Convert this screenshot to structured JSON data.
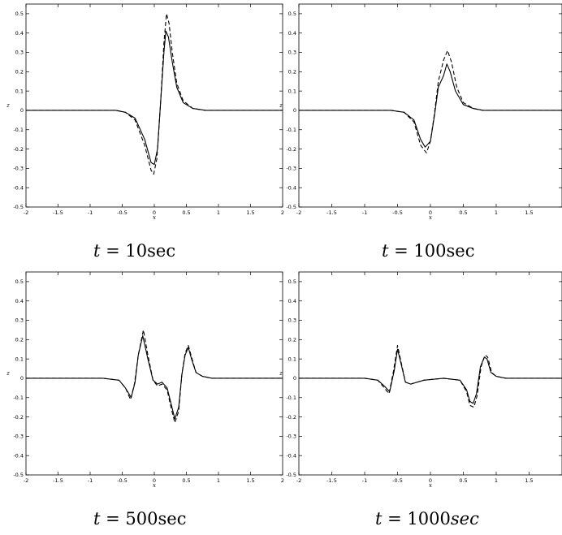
{
  "chart_data": [
    {
      "type": "line",
      "caption": {
        "t": "t",
        "eq": " = ",
        "value": "10",
        "unit": "sec"
      },
      "xlabel": "x",
      "ylabel": "z",
      "xlim": [
        -2,
        2
      ],
      "ylim": [
        -0.5,
        0.55
      ],
      "xticks": [
        -2,
        -1.5,
        -1,
        -0.5,
        0,
        0.5,
        1,
        1.5,
        2
      ],
      "yticks": [
        -0.5,
        -0.4,
        -0.3,
        -0.2,
        -0.1,
        0,
        0.1,
        0.2,
        0.3,
        0.4,
        0.5
      ],
      "series": [
        {
          "style": "solid",
          "x": [
            -2,
            -0.6,
            -0.45,
            -0.3,
            -0.15,
            -0.05,
            0.0,
            0.05,
            0.1,
            0.15,
            0.18,
            0.22,
            0.28,
            0.35,
            0.45,
            0.6,
            0.8,
            2
          ],
          "y": [
            0,
            0,
            -0.01,
            -0.04,
            -0.15,
            -0.27,
            -0.28,
            -0.2,
            0.05,
            0.3,
            0.41,
            0.38,
            0.25,
            0.12,
            0.04,
            0.01,
            0,
            0
          ]
        },
        {
          "style": "dashed",
          "x": [
            -2,
            -0.6,
            -0.45,
            -0.3,
            -0.15,
            -0.05,
            -0.01,
            0.04,
            0.1,
            0.15,
            0.19,
            0.23,
            0.28,
            0.35,
            0.45,
            0.6,
            0.8,
            2
          ],
          "y": [
            0,
            0,
            -0.01,
            -0.05,
            -0.18,
            -0.31,
            -0.33,
            -0.25,
            0.05,
            0.35,
            0.5,
            0.45,
            0.3,
            0.14,
            0.05,
            0.01,
            0,
            0
          ]
        }
      ]
    },
    {
      "type": "line",
      "caption": {
        "t": "t",
        "eq": " = ",
        "value": "100",
        "unit": "sec"
      },
      "xlabel": "x",
      "ylabel": "z",
      "xlim": [
        -2,
        2
      ],
      "ylim": [
        -0.5,
        0.55
      ],
      "xticks": [
        -2,
        -1.5,
        -1,
        -0.5,
        0,
        0.5,
        1,
        1.5
      ],
      "yticks": [
        -0.5,
        -0.4,
        -0.3,
        -0.2,
        -0.1,
        0,
        0.1,
        0.2,
        0.3,
        0.4,
        0.5
      ],
      "series": [
        {
          "style": "solid",
          "x": [
            -2,
            -0.6,
            -0.4,
            -0.25,
            -0.15,
            -0.08,
            0.0,
            0.06,
            0.12,
            0.2,
            0.25,
            0.3,
            0.38,
            0.5,
            0.65,
            0.8,
            2
          ],
          "y": [
            0,
            0,
            -0.01,
            -0.05,
            -0.15,
            -0.19,
            -0.16,
            -0.03,
            0.12,
            0.18,
            0.24,
            0.2,
            0.1,
            0.03,
            0.01,
            0,
            0
          ]
        },
        {
          "style": "dashed",
          "x": [
            -2,
            -0.6,
            -0.4,
            -0.25,
            -0.15,
            -0.06,
            0.0,
            0.06,
            0.12,
            0.2,
            0.26,
            0.32,
            0.4,
            0.5,
            0.65,
            0.8,
            2
          ],
          "y": [
            0,
            0,
            -0.01,
            -0.06,
            -0.18,
            -0.22,
            -0.16,
            -0.02,
            0.15,
            0.26,
            0.31,
            0.25,
            0.12,
            0.04,
            0.01,
            0,
            0
          ]
        }
      ]
    },
    {
      "type": "line",
      "caption": {
        "t": "t",
        "eq": " = ",
        "value": "500",
        "unit": "sec"
      },
      "xlabel": "x",
      "ylabel": "z",
      "xlim": [
        -2,
        2
      ],
      "ylim": [
        -0.5,
        0.55
      ],
      "xticks": [
        -2,
        -1.5,
        -1,
        -0.5,
        0,
        0.5,
        1,
        1.5,
        2
      ],
      "yticks": [
        -0.5,
        -0.4,
        -0.3,
        -0.2,
        -0.1,
        0,
        0.1,
        0.2,
        0.3,
        0.4,
        0.5
      ],
      "series": [
        {
          "style": "solid",
          "x": [
            -2,
            -0.8,
            -0.55,
            -0.45,
            -0.36,
            -0.3,
            -0.25,
            -0.18,
            -0.1,
            -0.02,
            0.05,
            0.12,
            0.2,
            0.26,
            0.32,
            0.38,
            0.43,
            0.48,
            0.53,
            0.58,
            0.65,
            0.75,
            0.9,
            2
          ],
          "y": [
            0,
            0,
            -0.01,
            -0.05,
            -0.1,
            -0.02,
            0.12,
            0.22,
            0.1,
            -0.01,
            -0.03,
            -0.02,
            -0.05,
            -0.13,
            -0.21,
            -0.15,
            0.02,
            0.12,
            0.16,
            0.1,
            0.03,
            0.01,
            0,
            0
          ]
        },
        {
          "style": "dashed",
          "x": [
            -2,
            -0.8,
            -0.55,
            -0.45,
            -0.37,
            -0.31,
            -0.25,
            -0.17,
            -0.1,
            -0.02,
            0.05,
            0.12,
            0.2,
            0.26,
            0.32,
            0.38,
            0.43,
            0.48,
            0.53,
            0.58,
            0.65,
            0.75,
            0.9,
            2
          ],
          "y": [
            0,
            0,
            -0.01,
            -0.05,
            -0.11,
            -0.03,
            0.12,
            0.25,
            0.12,
            -0.01,
            -0.04,
            -0.03,
            -0.06,
            -0.15,
            -0.23,
            -0.17,
            0.02,
            0.13,
            0.17,
            0.11,
            0.03,
            0.01,
            0,
            0
          ]
        }
      ]
    },
    {
      "type": "line",
      "caption": {
        "t": "t",
        "eq": " = ",
        "value": "1000",
        "unit": "sec",
        "unit_italic": true
      },
      "xlabel": "x",
      "ylabel": "z",
      "xlim": [
        -2,
        2
      ],
      "ylim": [
        -0.5,
        0.55
      ],
      "xticks": [
        -2,
        -1.5,
        -1,
        -0.5,
        0,
        0.5,
        1,
        1.5
      ],
      "yticks": [
        -0.5,
        -0.4,
        -0.3,
        -0.2,
        -0.1,
        0,
        0.1,
        0.2,
        0.3,
        0.4,
        0.5
      ],
      "series": [
        {
          "style": "solid",
          "x": [
            -2,
            -1.0,
            -0.8,
            -0.7,
            -0.62,
            -0.55,
            -0.5,
            -0.45,
            -0.38,
            -0.3,
            -0.1,
            0.2,
            0.45,
            0.55,
            0.6,
            0.65,
            0.7,
            0.76,
            0.82,
            0.86,
            0.92,
            1.0,
            1.15,
            2
          ],
          "y": [
            0,
            0,
            -0.01,
            -0.04,
            -0.07,
            0.04,
            0.15,
            0.08,
            -0.02,
            -0.03,
            -0.01,
            0,
            -0.01,
            -0.06,
            -0.12,
            -0.13,
            -0.08,
            0.06,
            0.11,
            0.1,
            0.03,
            0.01,
            0,
            0
          ]
        },
        {
          "style": "dashed",
          "x": [
            -2,
            -1.0,
            -0.8,
            -0.7,
            -0.63,
            -0.56,
            -0.5,
            -0.45,
            -0.38,
            -0.3,
            -0.1,
            0.2,
            0.45,
            0.55,
            0.6,
            0.66,
            0.71,
            0.77,
            0.83,
            0.87,
            0.93,
            1.0,
            1.15,
            2
          ],
          "y": [
            0,
            0,
            -0.01,
            -0.05,
            -0.08,
            0.04,
            0.17,
            0.09,
            -0.02,
            -0.03,
            -0.01,
            0,
            -0.01,
            -0.07,
            -0.14,
            -0.15,
            -0.09,
            0.06,
            0.12,
            0.11,
            0.03,
            0.01,
            0,
            0
          ]
        }
      ]
    }
  ]
}
